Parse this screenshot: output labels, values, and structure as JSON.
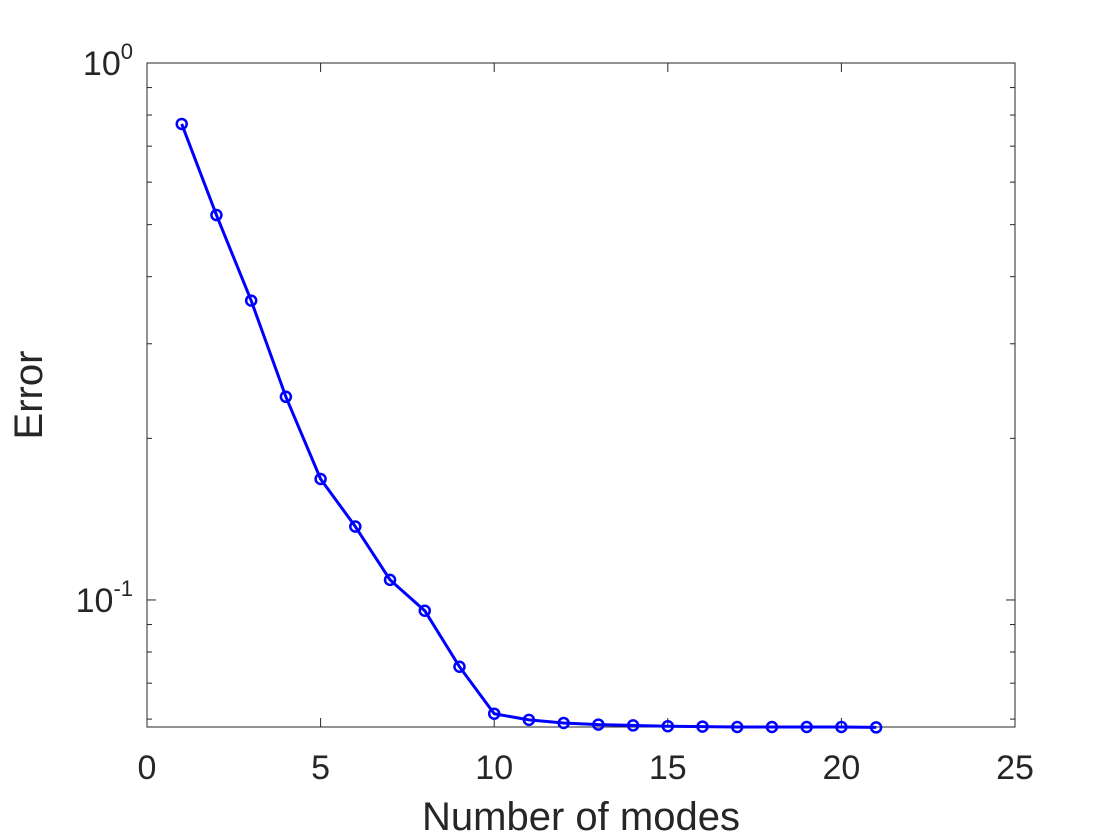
{
  "chart_data": {
    "type": "line",
    "title": "",
    "xlabel": "Number of modes",
    "ylabel": "Error",
    "xlim": [
      0,
      25
    ],
    "ylim": [
      0.058,
      1
    ],
    "yscale": "log",
    "grid": false,
    "legend": "none",
    "x_ticks": [
      0,
      5,
      10,
      15,
      20,
      25
    ],
    "x_tick_labels": [
      "0",
      "5",
      "10",
      "15",
      "20",
      "25"
    ],
    "y_ticks": [
      {
        "value": 1,
        "base": "10",
        "exponent": "0"
      },
      {
        "value": 0.1,
        "base": "10",
        "exponent": "-1"
      }
    ],
    "series": [
      {
        "color": "#0000ff",
        "marker": "circle",
        "x": [
          1,
          2,
          3,
          4,
          5,
          6,
          7,
          8,
          9,
          10,
          11,
          12,
          13,
          14,
          15,
          16,
          17,
          18,
          19,
          20,
          21
        ],
        "y": [
          0.77,
          0.521,
          0.361,
          0.239,
          0.168,
          0.137,
          0.109,
          0.0955,
          0.0751,
          0.0614,
          0.0598,
          0.059,
          0.0586,
          0.0584,
          0.0582,
          0.0581,
          0.058,
          0.058,
          0.058,
          0.058,
          0.0579
        ]
      }
    ]
  }
}
